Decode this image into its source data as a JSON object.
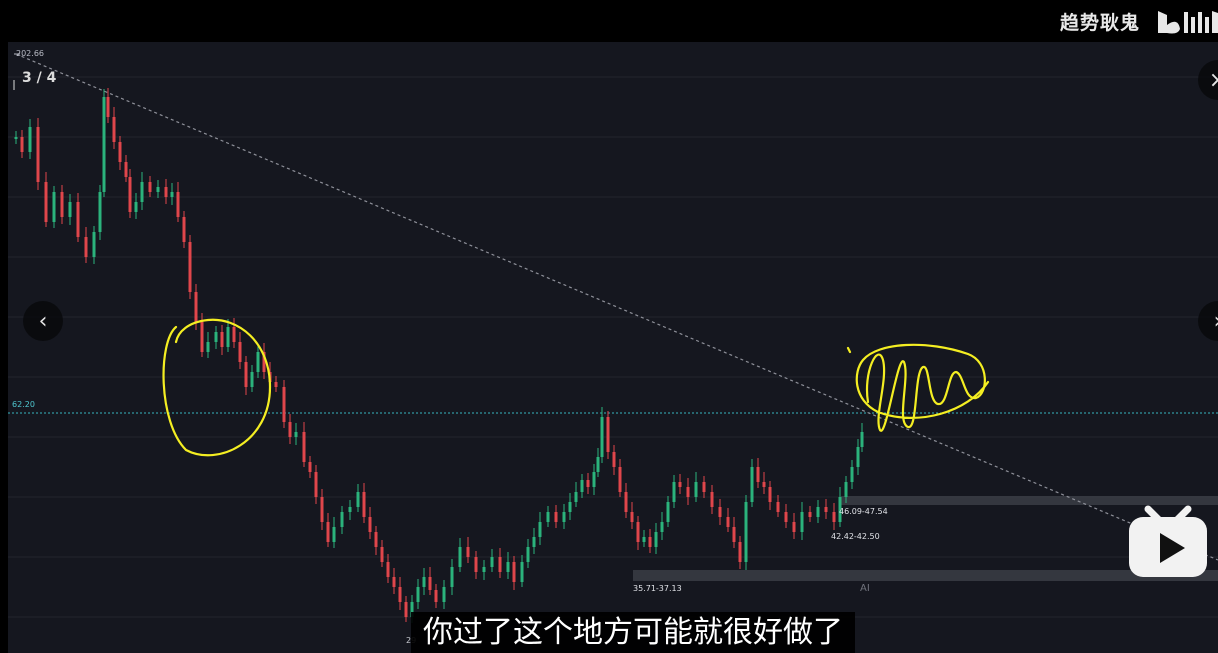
{
  "watermark": {
    "channel": "趋势耿鬼",
    "logo": "bilibili-logo"
  },
  "chart": {
    "top_price": "202.66",
    "page_indicator": "3 / 4",
    "price_line_label": "62.20",
    "range_labels": [
      "46.09-47.54",
      "42.42-42.50",
      "35.71-37.13"
    ],
    "bottom_price": "29",
    "ai_tag": "AI",
    "colors": {
      "up": "#2bb37c",
      "down": "#e0464b",
      "annotation": "#f4ee22",
      "price_line": "#37b6bf",
      "trendline": "#8e9099"
    }
  },
  "nav": {
    "prev_icon": "chevron-left-icon",
    "next_icon": "chevron-right-icon",
    "close_icon": "close-icon"
  },
  "subtitle": "你过了这个地方可能就很好做了",
  "player": {
    "play_icon": "play-icon"
  }
}
